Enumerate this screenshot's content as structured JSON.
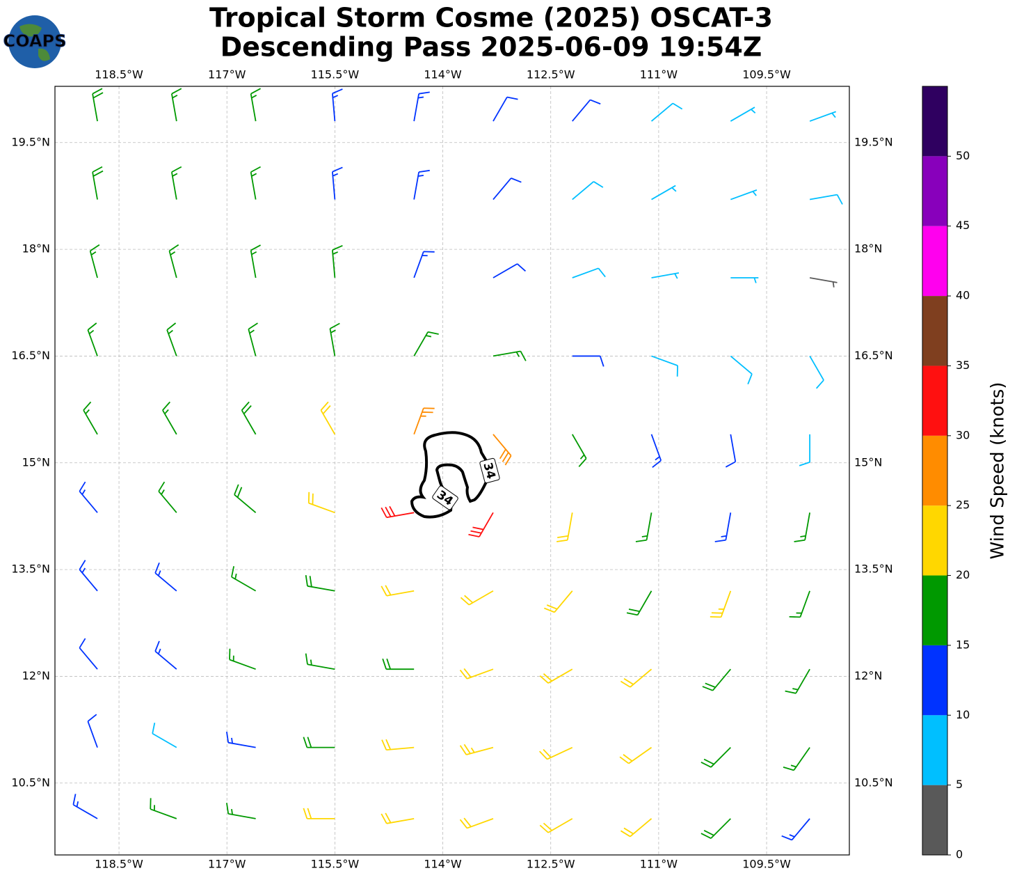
{
  "title": [
    "Tropical Storm Cosme (2025) OSCAT-3",
    "Descending Pass 2025-06-09 19:54Z"
  ],
  "logo": "COAPS",
  "map": {
    "xlim": [
      -119.39,
      -108.35
    ],
    "ylim": [
      9.49,
      20.29
    ],
    "xticks": [
      {
        "value": -118.5,
        "label": "118.5°W"
      },
      {
        "value": -117,
        "label": "117°W"
      },
      {
        "value": -115.5,
        "label": "115.5°W"
      },
      {
        "value": -114,
        "label": "114°W"
      },
      {
        "value": -112.5,
        "label": "112.5°W"
      },
      {
        "value": -111,
        "label": "111°W"
      },
      {
        "value": -109.5,
        "label": "109.5°W"
      }
    ],
    "yticks": [
      {
        "value": 10.5,
        "label": "10.5°N"
      },
      {
        "value": 12,
        "label": "12°N"
      },
      {
        "value": 13.5,
        "label": "13.5°N"
      },
      {
        "value": 15,
        "label": "15°N"
      },
      {
        "value": 16.5,
        "label": "16.5°N"
      },
      {
        "value": 18,
        "label": "18°N"
      },
      {
        "value": 19.5,
        "label": "19.5°N"
      }
    ],
    "grid": true,
    "contour_labels": [
      "34",
      "34"
    ],
    "barbs": {
      "lon": [
        -118.8,
        -117.7,
        -116.6,
        -115.5,
        -114.4,
        -113.3,
        -112.2,
        -111.1,
        -110.0,
        -108.9
      ],
      "lat": [
        19.8,
        18.7,
        17.6,
        16.5,
        15.4,
        14.3,
        13.2,
        12.1,
        11.0,
        10.0
      ],
      "speed": [
        [
          18,
          17,
          16,
          14,
          13,
          12,
          10,
          8,
          6,
          5
        ],
        [
          18,
          17,
          16,
          14,
          13,
          12,
          9,
          7,
          5,
          8
        ],
        [
          17,
          17,
          16,
          15,
          14,
          12,
          9,
          7,
          6,
          4
        ],
        [
          16,
          17,
          17,
          17,
          17,
          15,
          12,
          9,
          8,
          8
        ],
        [
          15,
          17,
          18,
          20,
          26,
          28,
          17,
          13,
          10,
          9
        ],
        [
          14,
          16,
          18,
          22,
          32,
          30,
          22,
          17,
          14,
          15
        ],
        [
          13,
          14,
          16,
          19,
          22,
          21,
          20,
          19,
          24,
          17
        ],
        [
          12,
          13,
          15,
          17,
          19,
          21,
          22,
          20,
          19,
          16
        ],
        [
          10,
          8,
          14,
          18,
          20,
          23,
          22,
          20,
          18,
          15
        ],
        [
          13,
          15,
          17,
          20,
          21,
          22,
          22,
          20,
          18,
          14
        ]
      ],
      "direction": [
        [
          350,
          350,
          350,
          355,
          10,
          30,
          40,
          50,
          60,
          70
        ],
        [
          350,
          350,
          350,
          355,
          10,
          40,
          50,
          60,
          70,
          80
        ],
        [
          345,
          345,
          350,
          355,
          20,
          60,
          70,
          80,
          90,
          100
        ],
        [
          340,
          340,
          345,
          350,
          30,
          80,
          90,
          110,
          130,
          150
        ],
        [
          330,
          330,
          330,
          330,
          20,
          140,
          150,
          160,
          170,
          180
        ],
        [
          320,
          320,
          310,
          290,
          260,
          210,
          190,
          190,
          190,
          190
        ],
        [
          320,
          310,
          300,
          280,
          260,
          240,
          220,
          210,
          200,
          200
        ],
        [
          320,
          310,
          290,
          280,
          270,
          250,
          240,
          230,
          220,
          210
        ],
        [
          340,
          300,
          280,
          270,
          265,
          255,
          245,
          235,
          225,
          215
        ],
        [
          300,
          290,
          280,
          270,
          260,
          250,
          240,
          230,
          225,
          220
        ]
      ]
    }
  },
  "colorbar": {
    "label": "Wind Speed (knots)",
    "clim": [
      0,
      55
    ],
    "ticks": [
      0,
      5,
      10,
      15,
      20,
      25,
      30,
      35,
      40,
      45,
      50
    ],
    "colors": [
      "#595959",
      "#00bfff",
      "#0033ff",
      "#009900",
      "#ffd700",
      "#ff8c00",
      "#ff1010",
      "#7f3f1f",
      "#ff00ee",
      "#8800bb",
      "#2f0060"
    ]
  }
}
